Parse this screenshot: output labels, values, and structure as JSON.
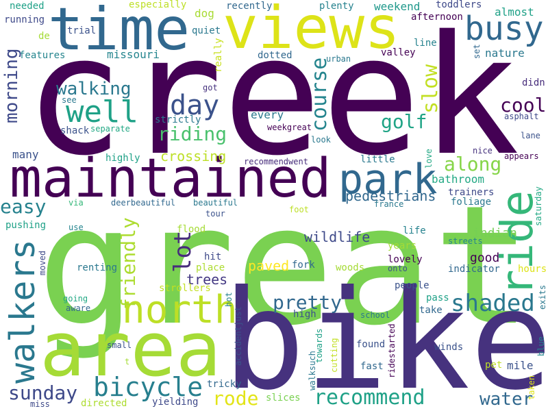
{
  "words": [
    {
      "text": "creek",
      "color": "#440154"
    },
    {
      "text": "great",
      "color": "#7ad151"
    },
    {
      "text": "bike",
      "color": "#46327e"
    },
    {
      "text": "maintained",
      "color": "#440154"
    },
    {
      "text": "area",
      "color": "#a5db36"
    },
    {
      "text": "time",
      "color": "#31688e"
    },
    {
      "text": "views",
      "color": "#dde318"
    },
    {
      "text": "ride",
      "color": "#35b779"
    },
    {
      "text": "north",
      "color": "#bddf26"
    },
    {
      "text": "park",
      "color": "#31688e"
    },
    {
      "text": "busy",
      "color": "#31688e"
    },
    {
      "text": "walkers",
      "color": "#2a788e"
    },
    {
      "text": "bicycle",
      "color": "#277f8e"
    },
    {
      "text": "well",
      "color": "#1fa187"
    },
    {
      "text": "day",
      "color": "#3b528b"
    },
    {
      "text": "shaded",
      "color": "#2a788e"
    },
    {
      "text": "recommend",
      "color": "#1fa187"
    },
    {
      "text": "pretty",
      "color": "#31688e"
    },
    {
      "text": "friendly",
      "color": "#addc30"
    },
    {
      "text": "sunday",
      "color": "#3e4989"
    },
    {
      "text": "walking",
      "color": "#2a788e"
    },
    {
      "text": "riding",
      "color": "#4ac16d"
    },
    {
      "text": "lot",
      "color": "#472d7b"
    },
    {
      "text": "course",
      "color": "#25858e"
    },
    {
      "text": "morning",
      "color": "#3e4989"
    },
    {
      "text": "golf",
      "color": "#20a486"
    },
    {
      "text": "cool",
      "color": "#440154"
    },
    {
      "text": "slow",
      "color": "#c2df23"
    },
    {
      "text": "along",
      "color": "#86d549"
    },
    {
      "text": "easy",
      "color": "#26828e"
    },
    {
      "text": "rode",
      "color": "#e2e418"
    },
    {
      "text": "water",
      "color": "#31688e"
    },
    {
      "text": "wildlife",
      "color": "#3e4989"
    },
    {
      "text": "pedestrians",
      "color": "#31688e"
    },
    {
      "text": "trees",
      "color": "#443983"
    },
    {
      "text": "crossing",
      "color": "#bddf26"
    },
    {
      "text": "paved",
      "color": "#fde725"
    },
    {
      "text": "indian",
      "color": "#75d054"
    },
    {
      "text": "good",
      "color": "#440154"
    },
    {
      "text": "bathroom",
      "color": "#22a884"
    },
    {
      "text": "mile",
      "color": "#3b528b"
    },
    {
      "text": "weekend",
      "color": "#1f988b"
    },
    {
      "text": "nature",
      "color": "#2a788e"
    },
    {
      "text": "missouri",
      "color": "#25858e"
    },
    {
      "text": "almost",
      "color": "#1fa187"
    },
    {
      "text": "dog",
      "color": "#a8db34"
    },
    {
      "text": "every",
      "color": "#2a788e"
    },
    {
      "text": "many",
      "color": "#3b528b"
    },
    {
      "text": "pushing",
      "color": "#1fa187"
    },
    {
      "text": "especially",
      "color": "#bddf26"
    },
    {
      "text": "recently",
      "color": "#31688e"
    },
    {
      "text": "plenty",
      "color": "#26828e"
    },
    {
      "text": "toddlers",
      "color": "#3e4989"
    },
    {
      "text": "needed",
      "color": "#1fa187"
    },
    {
      "text": "running",
      "color": "#3e4989"
    },
    {
      "text": "trial",
      "color": "#3b528b"
    },
    {
      "text": "quiet",
      "color": "#2a788e"
    },
    {
      "text": "afternoon",
      "color": "#440154"
    },
    {
      "text": "line",
      "color": "#26828e"
    },
    {
      "text": "valley",
      "color": "#440154"
    },
    {
      "text": "features",
      "color": "#25858e"
    },
    {
      "text": "dotted",
      "color": "#31688e"
    },
    {
      "text": "urban",
      "color": "#2a788e"
    },
    {
      "text": "de",
      "color": "#a5db36"
    },
    {
      "text": "set",
      "color": "#31688e"
    },
    {
      "text": "really",
      "color": "#c8e020"
    },
    {
      "text": "got",
      "color": "#46327e"
    },
    {
      "text": "see",
      "color": "#2a788e"
    },
    {
      "text": "didn",
      "color": "#472d7b"
    },
    {
      "text": "asphalt",
      "color": "#3e4989"
    },
    {
      "text": "strictly",
      "color": "#2a788e"
    },
    {
      "text": "shack",
      "color": "#3b528b"
    },
    {
      "text": "separate",
      "color": "#22a884"
    },
    {
      "text": "weekgreat",
      "color": "#440154"
    },
    {
      "text": "lane",
      "color": "#3b528b"
    },
    {
      "text": "look",
      "color": "#2a788e"
    },
    {
      "text": "highly",
      "color": "#1fa187"
    },
    {
      "text": "recommendwent",
      "color": "#472d7b"
    },
    {
      "text": "little",
      "color": "#2a788e"
    },
    {
      "text": "love",
      "color": "#22a884"
    },
    {
      "text": "nice",
      "color": "#46327e"
    },
    {
      "text": "appears",
      "color": "#440154"
    },
    {
      "text": "trainers",
      "color": "#3e4989"
    },
    {
      "text": "foliage",
      "color": "#2a788e"
    },
    {
      "text": "via",
      "color": "#35b779"
    },
    {
      "text": "deerbeautiful",
      "color": "#31688e"
    },
    {
      "text": "beautiful",
      "color": "#2a788e"
    },
    {
      "text": "france",
      "color": "#2a788e"
    },
    {
      "text": "saturday",
      "color": "#22a884"
    },
    {
      "text": "foot",
      "color": "#bddf26"
    },
    {
      "text": "tour",
      "color": "#3b528b"
    },
    {
      "text": "use",
      "color": "#25858e"
    },
    {
      "text": "flood",
      "color": "#a5db36"
    },
    {
      "text": "life",
      "color": "#26828e"
    },
    {
      "text": "streets",
      "color": "#25858e"
    },
    {
      "text": "hit",
      "color": "#3e4989"
    },
    {
      "text": "place",
      "color": "#addc30"
    },
    {
      "text": "years",
      "color": "#a5db36"
    },
    {
      "text": "lovely",
      "color": "#440154"
    },
    {
      "text": "onto",
      "color": "#3b528b"
    },
    {
      "text": "moved",
      "color": "#3e4989"
    },
    {
      "text": "renting",
      "color": "#2a788e"
    },
    {
      "text": "fork",
      "color": "#31688e"
    },
    {
      "text": "woods",
      "color": "#a5db36"
    },
    {
      "text": "indicator",
      "color": "#31688e"
    },
    {
      "text": "hours",
      "color": "#dde318"
    },
    {
      "text": "strollers",
      "color": "#c2df23"
    },
    {
      "text": "people",
      "color": "#3b528b"
    },
    {
      "text": "going",
      "color": "#22a884"
    },
    {
      "text": "aware",
      "color": "#31688e"
    },
    {
      "text": "hot",
      "color": "#26828e"
    },
    {
      "text": "accidentjust",
      "color": "#3b528b"
    },
    {
      "text": "pass",
      "color": "#1fa187"
    },
    {
      "text": "exits",
      "color": "#2a788e"
    },
    {
      "text": "take",
      "color": "#31688e"
    },
    {
      "text": "high",
      "color": "#3b528b"
    },
    {
      "text": "school",
      "color": "#2a788e"
    },
    {
      "text": "walksuch",
      "color": "#2a788e"
    },
    {
      "text": "towards",
      "color": "#1fa187"
    },
    {
      "text": "small",
      "color": "#3b528b"
    },
    {
      "text": "t",
      "color": "#a5db36"
    },
    {
      "text": "found",
      "color": "#3b528b"
    },
    {
      "text": "ridestarted",
      "color": "#440154"
    },
    {
      "text": "winds",
      "color": "#3b528b"
    },
    {
      "text": "blue",
      "color": "#25858e"
    },
    {
      "text": "cutting",
      "color": "#c2df23"
    },
    {
      "text": "fast",
      "color": "#31688e"
    },
    {
      "text": "pet",
      "color": "#bddf26"
    },
    {
      "text": "taken",
      "color": "#dde318"
    },
    {
      "text": "tricky",
      "color": "#31688e"
    },
    {
      "text": "yielding",
      "color": "#3e4989"
    },
    {
      "text": "slices",
      "color": "#7ad151"
    },
    {
      "text": "miss",
      "color": "#3e4989"
    },
    {
      "text": "directed",
      "color": "#addc30"
    }
  ]
}
